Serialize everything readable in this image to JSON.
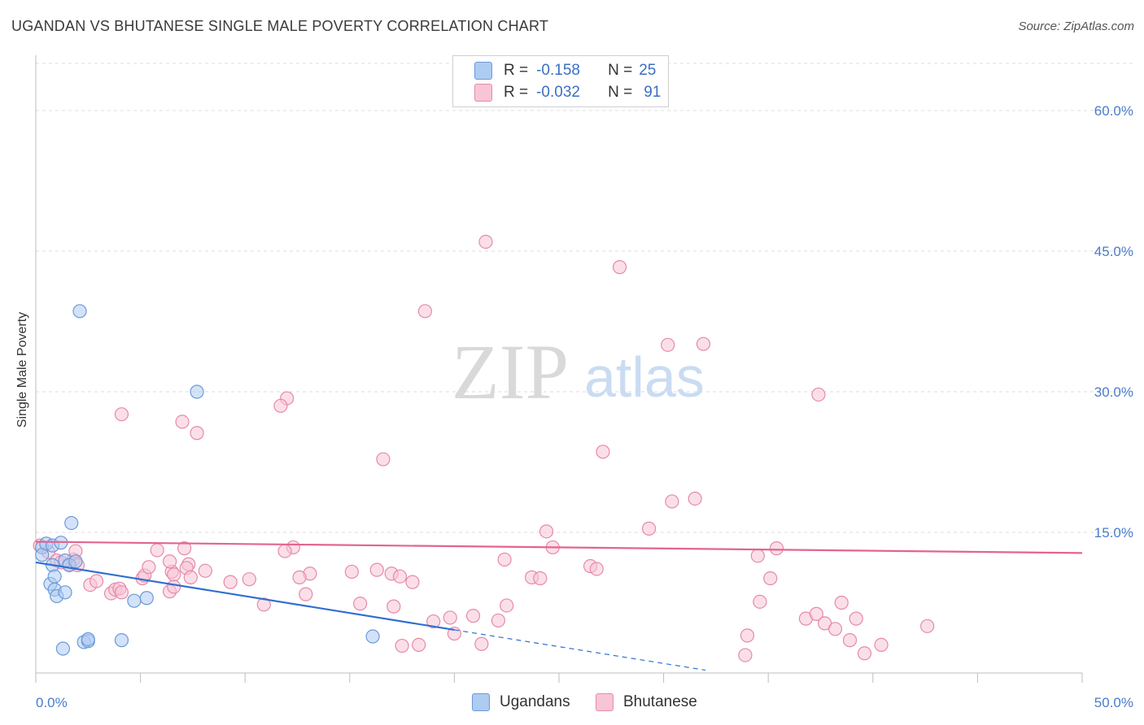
{
  "title": "UGANDAN VS BHUTANESE SINGLE MALE POVERTY CORRELATION CHART",
  "source": "Source: ZipAtlas.com",
  "watermark": {
    "zip": "ZIP",
    "atlas": "atlas"
  },
  "colors": {
    "blue_fill": "#aecbf2",
    "blue_stroke": "#6b9ad8",
    "blue_line": "#2f6fd0",
    "pink_fill": "#f8c5d6",
    "pink_stroke": "#e58aa9",
    "pink_line": "#e2658f",
    "axis_text": "#4a7cc9"
  },
  "legend": {
    "rows": [
      {
        "r_label": "R =",
        "r_value": "-0.158",
        "n_label": "N =",
        "n_value": "25"
      },
      {
        "r_label": "R =",
        "r_value": "-0.032",
        "n_label": "N =",
        "n_value": "91"
      }
    ]
  },
  "bottom_legend": {
    "ugandans": "Ugandans",
    "bhutanese": "Bhutanese"
  },
  "chart_data": {
    "type": "scatter",
    "title": "UGANDAN VS BHUTANESE SINGLE MALE POVERTY CORRELATION CHART",
    "xlabel": "",
    "ylabel": "Single Male Poverty",
    "xlim": [
      0,
      50
    ],
    "ylim": [
      0,
      63
    ],
    "x_tick_labels": [
      "0.0%",
      "50.0%"
    ],
    "y_ticks": [
      15,
      30,
      45,
      60
    ],
    "y_tick_labels": [
      "15.0%",
      "30.0%",
      "45.0%",
      "60.0%"
    ],
    "grid": "horizontal dashed",
    "series": [
      {
        "name": "Ugandans",
        "r": -0.158,
        "n": 25,
        "trend": {
          "x": [
            0,
            20
          ],
          "y": [
            11.8,
            4.6
          ],
          "extended_x": [
            20,
            32
          ],
          "extended_y": [
            4.6,
            0.3
          ]
        },
        "points": [
          {
            "x": 0.3,
            "y": 13.4
          },
          {
            "x": 0.3,
            "y": 12.6
          },
          {
            "x": 0.5,
            "y": 13.8
          },
          {
            "x": 0.7,
            "y": 9.5
          },
          {
            "x": 0.8,
            "y": 11.5
          },
          {
            "x": 0.9,
            "y": 10.3
          },
          {
            "x": 0.9,
            "y": 8.9
          },
          {
            "x": 1.0,
            "y": 8.2
          },
          {
            "x": 0.8,
            "y": 13.6
          },
          {
            "x": 1.2,
            "y": 13.9
          },
          {
            "x": 1.3,
            "y": 2.6
          },
          {
            "x": 1.4,
            "y": 12.0
          },
          {
            "x": 1.4,
            "y": 8.6
          },
          {
            "x": 1.6,
            "y": 11.5
          },
          {
            "x": 1.7,
            "y": 16.0
          },
          {
            "x": 1.9,
            "y": 11.9
          },
          {
            "x": 2.3,
            "y": 3.3
          },
          {
            "x": 2.5,
            "y": 3.4
          },
          {
            "x": 2.5,
            "y": 3.6
          },
          {
            "x": 2.1,
            "y": 38.6
          },
          {
            "x": 4.1,
            "y": 3.5
          },
          {
            "x": 4.7,
            "y": 7.7
          },
          {
            "x": 5.3,
            "y": 8.0
          },
          {
            "x": 7.7,
            "y": 30.0
          },
          {
            "x": 16.1,
            "y": 3.9
          }
        ]
      },
      {
        "name": "Bhutanese",
        "r": -0.032,
        "n": 91,
        "trend": {
          "x": [
            0,
            50
          ],
          "y": [
            14.0,
            12.8
          ]
        },
        "points": [
          {
            "x": 0.2,
            "y": 13.6
          },
          {
            "x": 0.6,
            "y": 12.9
          },
          {
            "x": 1.0,
            "y": 12.0
          },
          {
            "x": 1.2,
            "y": 11.8
          },
          {
            "x": 1.6,
            "y": 11.6
          },
          {
            "x": 1.8,
            "y": 12.1
          },
          {
            "x": 1.9,
            "y": 13.0
          },
          {
            "x": 2.0,
            "y": 11.5
          },
          {
            "x": 2.6,
            "y": 9.4
          },
          {
            "x": 2.9,
            "y": 9.8
          },
          {
            "x": 3.6,
            "y": 8.5
          },
          {
            "x": 3.8,
            "y": 8.9
          },
          {
            "x": 4.0,
            "y": 9.0
          },
          {
            "x": 4.1,
            "y": 8.6
          },
          {
            "x": 5.1,
            "y": 10.1
          },
          {
            "x": 5.2,
            "y": 10.4
          },
          {
            "x": 6.5,
            "y": 10.8
          },
          {
            "x": 6.4,
            "y": 8.7
          },
          {
            "x": 7.3,
            "y": 11.6
          },
          {
            "x": 6.6,
            "y": 10.5
          },
          {
            "x": 5.8,
            "y": 13.1
          },
          {
            "x": 6.6,
            "y": 9.2
          },
          {
            "x": 7.2,
            "y": 11.2
          },
          {
            "x": 5.4,
            "y": 11.3
          },
          {
            "x": 6.4,
            "y": 11.9
          },
          {
            "x": 7.1,
            "y": 13.3
          },
          {
            "x": 8.1,
            "y": 10.9
          },
          {
            "x": 7.4,
            "y": 10.2
          },
          {
            "x": 9.3,
            "y": 9.7
          },
          {
            "x": 10.2,
            "y": 10.0
          },
          {
            "x": 10.9,
            "y": 7.3
          },
          {
            "x": 12.3,
            "y": 13.4
          },
          {
            "x": 11.9,
            "y": 13.0
          },
          {
            "x": 13.1,
            "y": 10.6
          },
          {
            "x": 12.6,
            "y": 10.2
          },
          {
            "x": 12.9,
            "y": 8.4
          },
          {
            "x": 15.1,
            "y": 10.8
          },
          {
            "x": 16.3,
            "y": 11.0
          },
          {
            "x": 17.0,
            "y": 10.6
          },
          {
            "x": 17.4,
            "y": 10.3
          },
          {
            "x": 18.0,
            "y": 9.7
          },
          {
            "x": 15.5,
            "y": 7.4
          },
          {
            "x": 17.1,
            "y": 7.1
          },
          {
            "x": 19.0,
            "y": 5.5
          },
          {
            "x": 17.5,
            "y": 2.9
          },
          {
            "x": 18.3,
            "y": 3.0
          },
          {
            "x": 20.0,
            "y": 4.2
          },
          {
            "x": 19.8,
            "y": 5.9
          },
          {
            "x": 20.9,
            "y": 6.1
          },
          {
            "x": 21.3,
            "y": 3.1
          },
          {
            "x": 22.1,
            "y": 5.6
          },
          {
            "x": 22.5,
            "y": 7.2
          },
          {
            "x": 22.4,
            "y": 12.1
          },
          {
            "x": 23.7,
            "y": 10.2
          },
          {
            "x": 24.1,
            "y": 10.1
          },
          {
            "x": 24.7,
            "y": 13.4
          },
          {
            "x": 26.5,
            "y": 11.4
          },
          {
            "x": 26.8,
            "y": 11.1
          },
          {
            "x": 24.4,
            "y": 15.1
          },
          {
            "x": 29.3,
            "y": 15.4
          },
          {
            "x": 27.1,
            "y": 23.6
          },
          {
            "x": 30.4,
            "y": 18.3
          },
          {
            "x": 31.5,
            "y": 18.6
          },
          {
            "x": 34.5,
            "y": 12.5
          },
          {
            "x": 35.4,
            "y": 13.3
          },
          {
            "x": 35.1,
            "y": 10.1
          },
          {
            "x": 34.6,
            "y": 7.6
          },
          {
            "x": 36.8,
            "y": 5.8
          },
          {
            "x": 37.3,
            "y": 6.3
          },
          {
            "x": 37.7,
            "y": 5.3
          },
          {
            "x": 38.2,
            "y": 4.7
          },
          {
            "x": 38.5,
            "y": 7.5
          },
          {
            "x": 39.2,
            "y": 5.8
          },
          {
            "x": 38.9,
            "y": 3.5
          },
          {
            "x": 39.6,
            "y": 2.1
          },
          {
            "x": 40.4,
            "y": 3.0
          },
          {
            "x": 42.6,
            "y": 5.0
          },
          {
            "x": 34.0,
            "y": 4.0
          },
          {
            "x": 33.9,
            "y": 1.9
          },
          {
            "x": 21.5,
            "y": 46.0
          },
          {
            "x": 27.9,
            "y": 43.3
          },
          {
            "x": 18.6,
            "y": 38.6
          },
          {
            "x": 30.2,
            "y": 35.0
          },
          {
            "x": 31.9,
            "y": 35.1
          },
          {
            "x": 37.4,
            "y": 29.7
          },
          {
            "x": 12.0,
            "y": 29.3
          },
          {
            "x": 11.7,
            "y": 28.5
          },
          {
            "x": 4.1,
            "y": 27.6
          },
          {
            "x": 7.0,
            "y": 26.8
          },
          {
            "x": 7.7,
            "y": 25.6
          },
          {
            "x": 16.6,
            "y": 22.8
          }
        ]
      }
    ]
  }
}
